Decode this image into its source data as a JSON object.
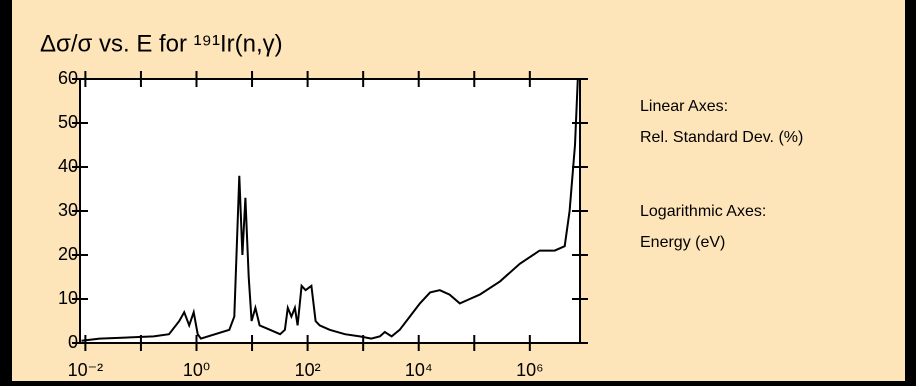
{
  "chart_data": {
    "type": "line",
    "title": "Δσ/σ vs. E for ¹⁹¹Ir(n,γ)",
    "annotations": [
      "Linear Axes:",
      "Rel. Standard Dev. (%)",
      "Logarithmic Axes:",
      "Energy (eV)"
    ],
    "xscale": "log",
    "xlim": [
      0.008,
      8000000
    ],
    "ylim": [
      0,
      60
    ],
    "xticks": [
      {
        "value": 0.01,
        "label": "10⁻²"
      },
      {
        "value": 1,
        "label": "10⁰"
      },
      {
        "value": 100,
        "label": "10²"
      },
      {
        "value": 10000,
        "label": "10⁴"
      },
      {
        "value": 1000000,
        "label": "10⁶"
      }
    ],
    "xminorticks": [
      0.1,
      10,
      1000,
      100000
    ],
    "yticks": [
      0,
      10,
      20,
      30,
      40,
      50,
      60
    ],
    "x": [
      0.0085,
      0.018,
      0.17,
      0.32,
      0.49,
      0.6,
      0.74,
      0.89,
      1.05,
      1.2,
      3.9,
      4.8,
      5.9,
      6.7,
      7.6,
      8.7,
      9.8,
      11.5,
      13.7,
      21,
      32,
      39,
      44,
      51,
      59,
      66,
      78,
      92,
      117,
      139,
      165,
      250,
      470,
      870,
      1400,
      2000,
      2450,
      3250,
      4550,
      6900,
      10500,
      16000,
      24000,
      36000,
      55000,
      83000,
      126000,
      290000,
      660000,
      1500000,
      2800000,
      4250000,
      5200000,
      6500000,
      7300000
    ],
    "series": [
      {
        "color": "#000000",
        "values": [
          0.5,
          1,
          1.5,
          2,
          5,
          7,
          4,
          7,
          2,
          1,
          3,
          6,
          38,
          20,
          33,
          15,
          5,
          8,
          4,
          3,
          2,
          3,
          8,
          6,
          8,
          4,
          13,
          12,
          13,
          5,
          4,
          3,
          2,
          1.5,
          1,
          1.5,
          2.5,
          1.5,
          3,
          6,
          9,
          11.5,
          12,
          11,
          9,
          10,
          11,
          14,
          18,
          21,
          21,
          22,
          30,
          45,
          60
        ]
      }
    ]
  }
}
